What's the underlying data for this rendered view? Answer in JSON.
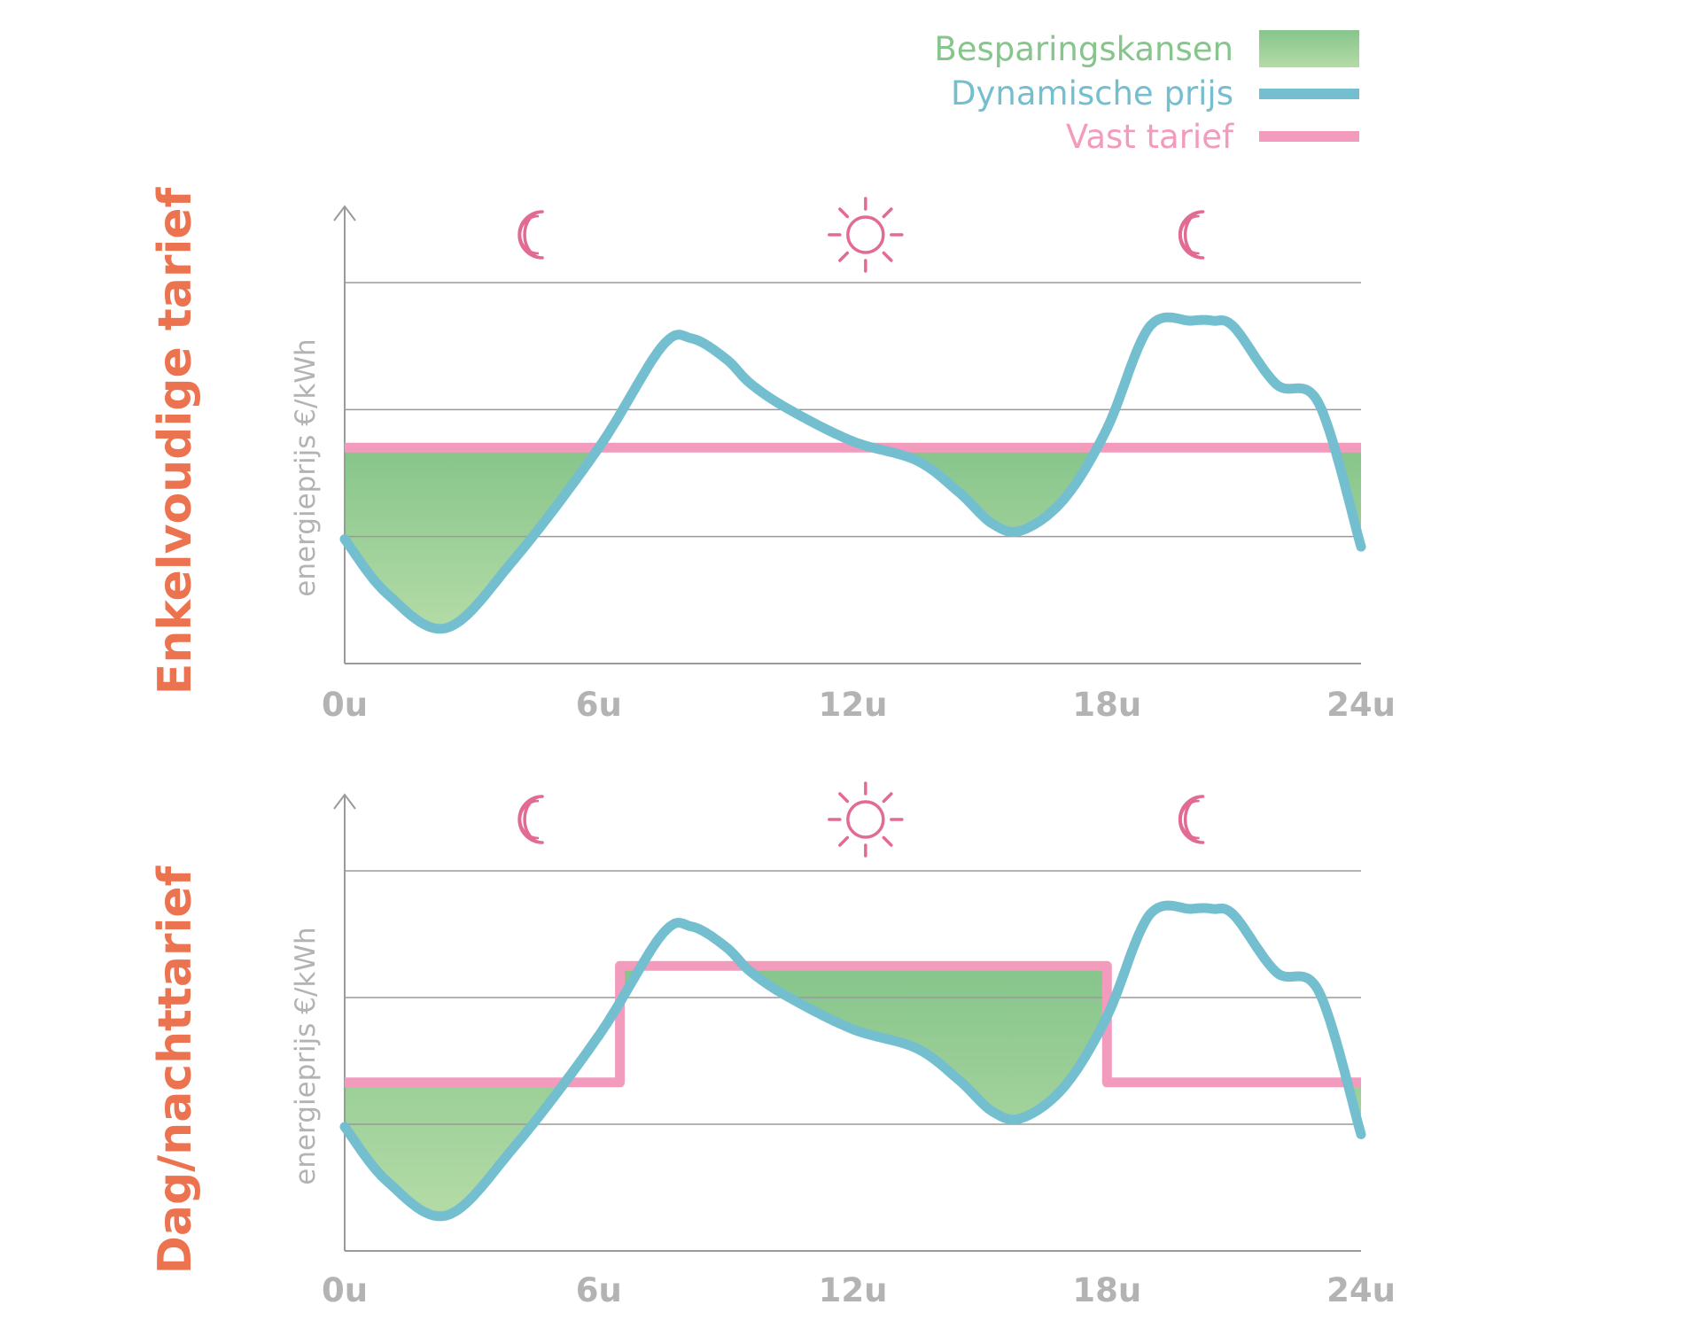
{
  "colors": {
    "savings_top": "#86c58b",
    "savings_bottom": "#b4dba6",
    "dynamic": "#74bfcf",
    "fixed": "#f29bbd",
    "title": "#ec7350",
    "grid": "#9a9a9a",
    "axis_text": "#b3b3b3",
    "icon": "#e26b94"
  },
  "legend": [
    {
      "label": "Besparingskansen",
      "kind": "area",
      "color": "#86c58b"
    },
    {
      "label": "Dynamische prijs",
      "kind": "line",
      "color": "#74bfcf"
    },
    {
      "label": "Vast tarief",
      "kind": "line",
      "color": "#f29bbd"
    }
  ],
  "chart_data": [
    {
      "type": "line",
      "title": "Enkelvoudige tarief",
      "ylabel": "energieprijs €/kWh",
      "xlabel": "",
      "xlim": [
        0,
        24
      ],
      "ylim": [
        0,
        3
      ],
      "y_gridlines": [
        1,
        2,
        3
      ],
      "x_ticks": [
        0,
        6,
        12,
        18,
        24
      ],
      "x_tick_labels": [
        "0u",
        "6u",
        "12u",
        "18u",
        "24u"
      ],
      "icons": [
        {
          "name": "moon",
          "x": 4.5
        },
        {
          "name": "sun",
          "x": 12.3
        },
        {
          "name": "moon",
          "x": 20.1
        }
      ],
      "series": [
        {
          "name": "Dynamische prijs",
          "x": [
            0,
            1,
            2.4,
            4,
            6,
            7.5,
            8.2,
            9,
            9.6,
            10.5,
            12,
            13.5,
            14.5,
            15.3,
            16,
            17,
            18,
            19,
            20,
            20.5,
            21,
            22,
            23,
            24
          ],
          "y": [
            0.98,
            0.55,
            0.28,
            0.82,
            1.7,
            2.5,
            2.56,
            2.4,
            2.2,
            2.0,
            1.75,
            1.6,
            1.35,
            1.1,
            1.05,
            1.3,
            1.85,
            2.65,
            2.7,
            2.7,
            2.65,
            2.2,
            2.05,
            0.92
          ]
        },
        {
          "name": "Vast tarief",
          "x": [
            0,
            24
          ],
          "y": [
            1.7,
            1.7
          ]
        }
      ]
    },
    {
      "type": "line",
      "title": "Dag/nachttarief",
      "ylabel": "energieprijs €/kWh",
      "xlabel": "",
      "xlim": [
        0,
        24
      ],
      "ylim": [
        0,
        3
      ],
      "y_gridlines": [
        1,
        2,
        3
      ],
      "x_ticks": [
        0,
        6,
        12,
        18,
        24
      ],
      "x_tick_labels": [
        "0u",
        "6u",
        "12u",
        "18u",
        "24u"
      ],
      "icons": [
        {
          "name": "moon",
          "x": 4.5
        },
        {
          "name": "sun",
          "x": 12.3
        },
        {
          "name": "moon",
          "x": 20.1
        }
      ],
      "series": [
        {
          "name": "Dynamische prijs",
          "x": [
            0,
            1,
            2.4,
            4,
            6,
            7.5,
            8.2,
            9,
            9.6,
            10.5,
            12,
            13.5,
            14.5,
            15.3,
            16,
            17,
            18,
            19,
            20,
            20.5,
            21,
            22,
            23,
            24
          ],
          "y": [
            0.98,
            0.55,
            0.28,
            0.82,
            1.7,
            2.5,
            2.56,
            2.4,
            2.2,
            2.0,
            1.75,
            1.6,
            1.35,
            1.1,
            1.05,
            1.3,
            1.85,
            2.65,
            2.7,
            2.7,
            2.65,
            2.2,
            2.05,
            0.92
          ]
        },
        {
          "name": "Vast tarief",
          "x": [
            0,
            6.5,
            6.5,
            18,
            18,
            24
          ],
          "y": [
            1.33,
            1.33,
            2.25,
            2.25,
            1.33,
            1.33
          ]
        }
      ]
    }
  ]
}
